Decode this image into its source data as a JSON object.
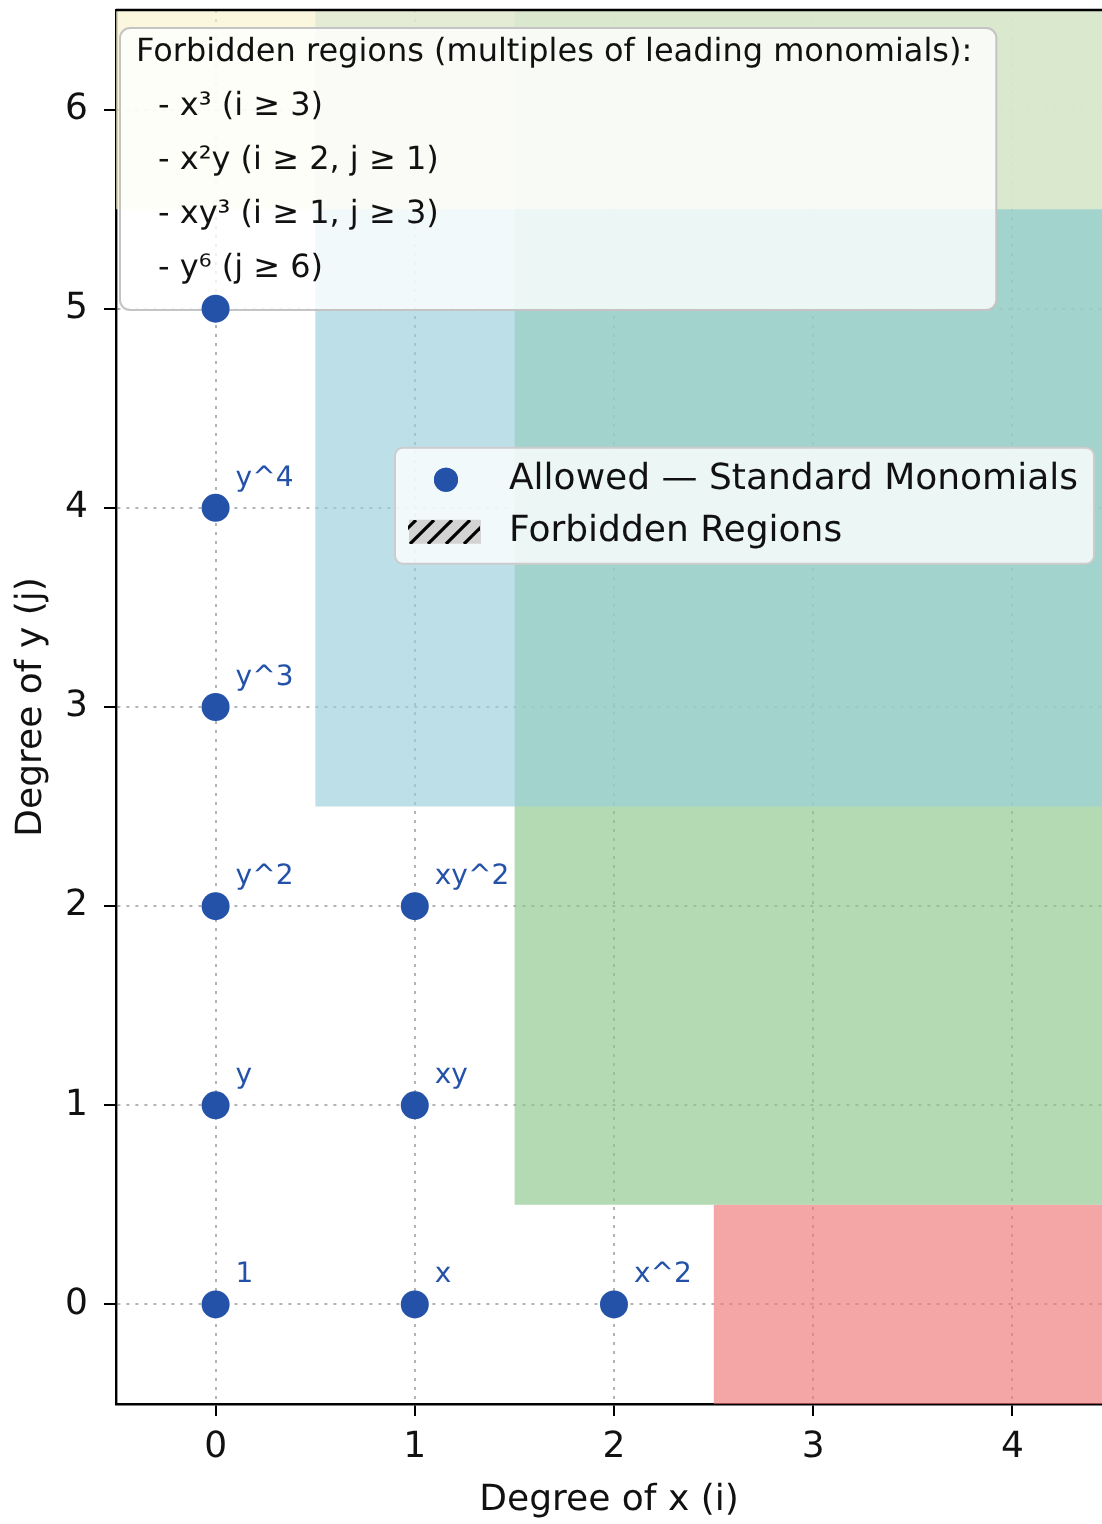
{
  "chart_data": {
    "type": "scatter",
    "xlabel": "Degree of x (i)",
    "ylabel": "Degree of y (j)",
    "xlim": [
      -0.5,
      4.45
    ],
    "ylim": [
      -0.5,
      6.5
    ],
    "xticks": [
      0,
      1,
      2,
      3,
      4
    ],
    "yticks": [
      0,
      1,
      2,
      3,
      4,
      5,
      6
    ],
    "grid": true,
    "legend": "right",
    "series": [
      {
        "name": "Allowed — Standard Monomials",
        "color": "#2352a8",
        "marker": "circle",
        "x": [
          0,
          1,
          2,
          0,
          1,
          0,
          1,
          0,
          0,
          0
        ],
        "values": [
          0,
          0,
          0,
          1,
          1,
          2,
          2,
          3,
          4,
          5
        ]
      },
      {
        "name": "Forbidden Regions",
        "type": "area",
        "color": "#d3d3d3"
      },
      {
        "type": "area",
        "color": "#ee7676",
        "x": [
          2.5,
          4.45
        ],
        "values": [
          null,
          null
        ],
        "lower": [
          -0.5,
          -0.5
        ],
        "upper": [
          0.5,
          0.5
        ]
      },
      {
        "type": "area",
        "color": "#8ac68a",
        "x": [
          1.5,
          4.45
        ],
        "values": [
          null,
          null
        ],
        "lower": [
          0.5,
          0.5
        ],
        "upper": [
          6.5,
          6.5
        ]
      },
      {
        "type": "area",
        "color": "#99cfdc",
        "x": [
          0.5,
          4.45
        ],
        "values": [
          null,
          null
        ],
        "lower": [
          2.5,
          2.5
        ],
        "upper": [
          6.5,
          6.5
        ]
      },
      {
        "type": "area",
        "color": "#f9f3cc",
        "x": [
          -0.5,
          4.45
        ],
        "values": [
          null,
          null
        ],
        "lower": [
          5.5,
          5.5
        ],
        "upper": [
          6.5,
          6.5
        ]
      }
    ],
    "annotations": [
      "Forbidden regions (multiples of leading monomials):",
      "- x³ (i ≥ 3)",
      "- x²y (i ≥ 2, j ≥ 1)",
      "- xy³ (i ≥ 1, j ≥ 3)",
      "- y⁶ (j ≥ 6)",
      {
        "text": "1",
        "x": 0,
        "y": 0
      },
      {
        "text": "x",
        "x": 1,
        "y": 0
      },
      {
        "text": "x^2",
        "x": 2,
        "y": 0
      },
      {
        "text": "y",
        "x": 0,
        "y": 1
      },
      {
        "text": "xy",
        "x": 1,
        "y": 1
      },
      {
        "text": "y^2",
        "x": 0,
        "y": 2
      },
      {
        "text": "xy^2",
        "x": 1,
        "y": 2
      },
      {
        "text": "y^3",
        "x": 0,
        "y": 3
      },
      {
        "text": "y^4",
        "x": 0,
        "y": 4
      }
    ]
  }
}
